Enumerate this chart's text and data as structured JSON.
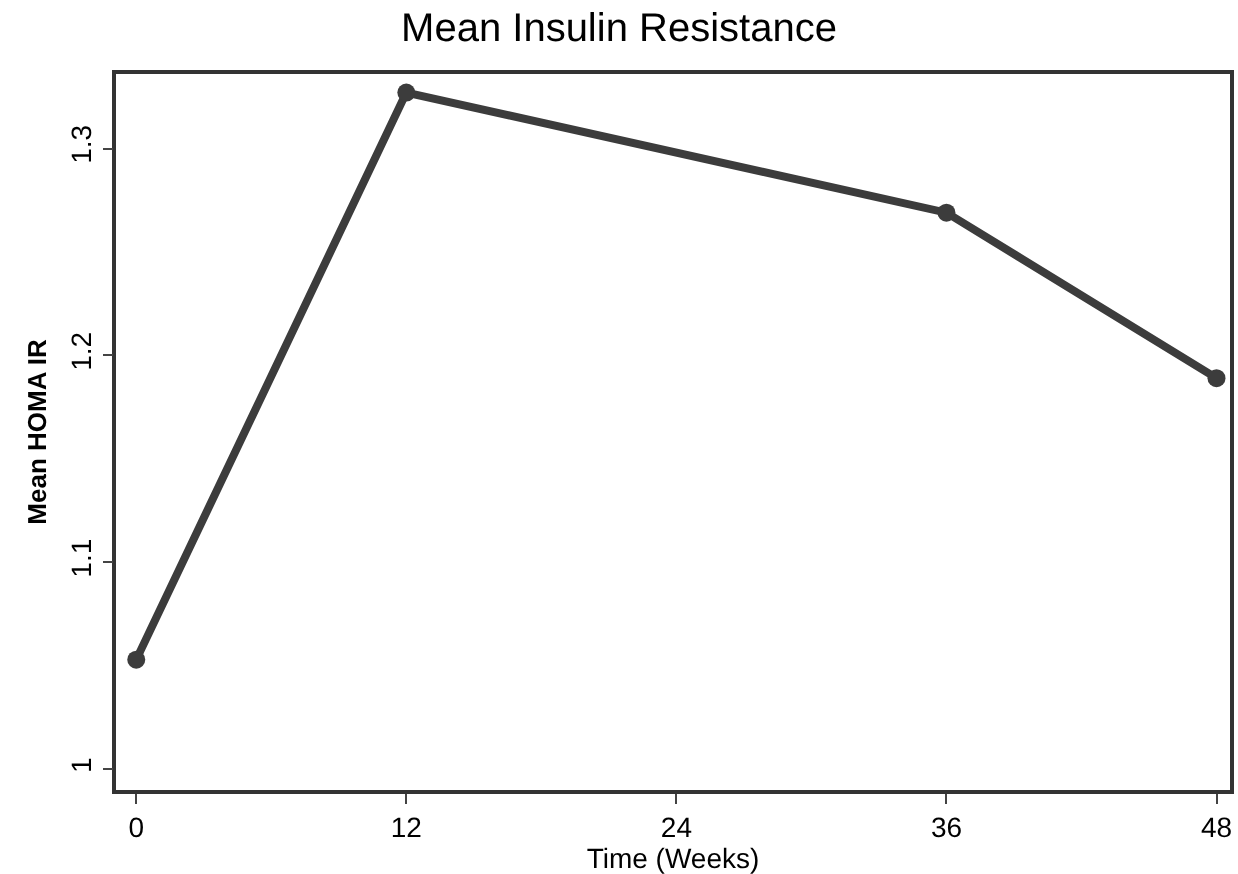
{
  "chart_data": {
    "type": "line",
    "title": "Mean Insulin Resistance",
    "xlabel": "Time (Weeks)",
    "ylabel": "Mean HOMA IR",
    "x": [
      0,
      12,
      36,
      48
    ],
    "series": [
      {
        "color": "#3c3c3c",
        "values": [
          1.053,
          1.327,
          1.269,
          1.189
        ]
      }
    ],
    "xlim": [
      -0.9,
      48.6
    ],
    "xticks": [
      0,
      12,
      24,
      36,
      48
    ],
    "ylim": [
      0.99,
      1.336
    ],
    "yticks": [
      1,
      1.1,
      1.2,
      1.3
    ],
    "marker": "circle",
    "line_style": "solid"
  }
}
